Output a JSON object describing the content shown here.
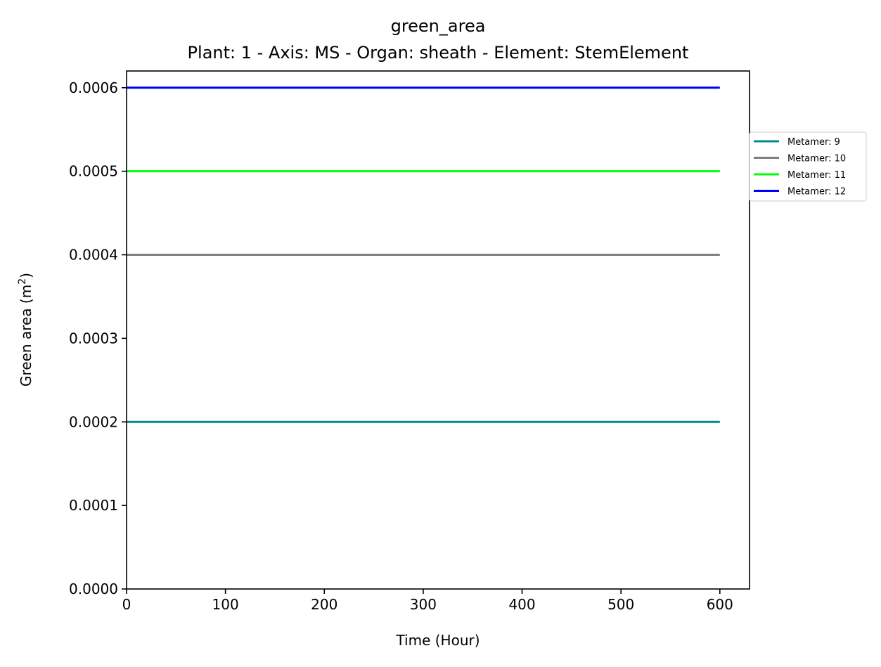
{
  "chart_data": {
    "type": "line",
    "title": "green_area",
    "subtitle": "Plant: 1 - Axis: MS - Organ: sheath - Element: StemElement",
    "xlabel": "Time (Hour)",
    "ylabel_text": "Green area (m",
    "ylabel_sup": "2",
    "ylabel_close": ")",
    "xlim": [
      0,
      630
    ],
    "ylim": [
      0,
      0.00062
    ],
    "xticks": [
      0,
      100,
      200,
      300,
      400,
      500,
      600
    ],
    "xtick_labels": [
      "0",
      "100",
      "200",
      "300",
      "400",
      "500",
      "600"
    ],
    "yticks": [
      0,
      0.0001,
      0.0002,
      0.0003,
      0.0004,
      0.0005,
      0.0006
    ],
    "ytick_labels": [
      "0.0000",
      "0.0001",
      "0.0002",
      "0.0003",
      "0.0004",
      "0.0005",
      "0.0006"
    ],
    "grid": false,
    "legend_position": "outside-right",
    "series": [
      {
        "name": "Metamer: 9",
        "color": "#008b8b",
        "x": [
          0,
          600
        ],
        "y": [
          0.0002,
          0.0002
        ]
      },
      {
        "name": "Metamer: 10",
        "color": "#808080",
        "x": [
          0,
          600
        ],
        "y": [
          0.0004,
          0.0004
        ]
      },
      {
        "name": "Metamer: 11",
        "color": "#00ff00",
        "x": [
          0,
          600
        ],
        "y": [
          0.0005,
          0.0005
        ]
      },
      {
        "name": "Metamer: 12",
        "color": "#0000ff",
        "x": [
          0,
          600
        ],
        "y": [
          0.0006,
          0.0006
        ]
      }
    ]
  }
}
